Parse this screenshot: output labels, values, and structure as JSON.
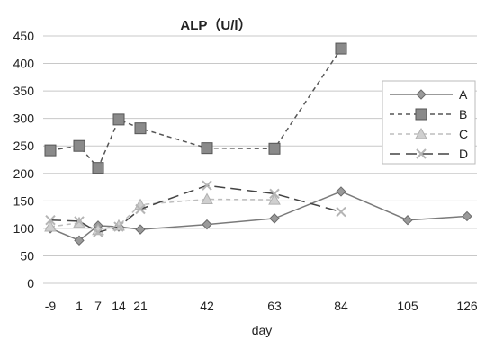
{
  "chart_data": {
    "type": "line",
    "title": "ALP（U/l）",
    "xlabel": "day",
    "ylabel": "",
    "x": [
      -9,
      1,
      7,
      14,
      21,
      42,
      63,
      84,
      105,
      126
    ],
    "x_tick_labels": [
      "-9",
      "1",
      "7",
      "14",
      "21",
      "42",
      "63",
      "84",
      "105",
      "126"
    ],
    "ylim": [
      0,
      450
    ],
    "y_ticks": [
      0,
      50,
      100,
      150,
      200,
      250,
      300,
      350,
      400,
      450
    ],
    "grid": true,
    "legend_position": "right",
    "series": [
      {
        "name": "A",
        "x": [
          -9,
          1,
          7,
          14,
          21,
          42,
          63,
          84,
          105,
          126
        ],
        "values": [
          100,
          78,
          105,
          103,
          98,
          107,
          118,
          167,
          115,
          122
        ],
        "color": "#7a7a7a",
        "dash": "solid",
        "marker": "diamond"
      },
      {
        "name": "B",
        "x": [
          -9,
          1,
          7,
          14,
          21,
          42,
          63,
          84
        ],
        "values": [
          242,
          250,
          210,
          298,
          282,
          246,
          245,
          427
        ],
        "color": "#555555",
        "dash": "dashed",
        "marker": "square"
      },
      {
        "name": "C",
        "x": [
          -9,
          1,
          7,
          14,
          21,
          42,
          63
        ],
        "values": [
          103,
          110,
          97,
          105,
          143,
          153,
          152
        ],
        "color": "#bdbdbd",
        "dash": "dashed",
        "marker": "triangle"
      },
      {
        "name": "D",
        "x": [
          -9,
          1,
          7,
          14,
          21,
          42,
          63,
          84
        ],
        "values": [
          115,
          113,
          93,
          103,
          135,
          178,
          163,
          130
        ],
        "color": "#444444",
        "dash": "longdash",
        "marker": "x"
      }
    ]
  }
}
